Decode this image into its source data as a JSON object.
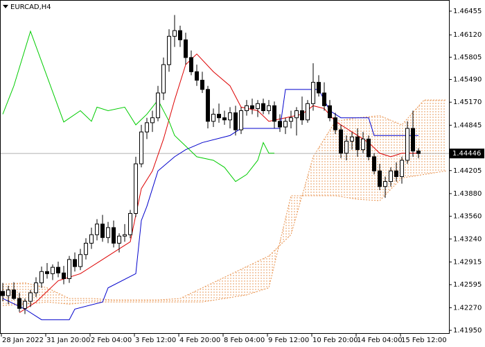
{
  "chart_data": {
    "type": "candlestick",
    "title": "EURCAD,H4",
    "categories": [
      "28 Jan 2022",
      null,
      null,
      null,
      null,
      null,
      null,
      null,
      "31 Jan 20:00",
      null,
      null,
      null,
      null,
      null,
      null,
      null,
      "2 Feb 04:00",
      null,
      null,
      null,
      null,
      null,
      null,
      null,
      "3 Feb 12:00",
      null,
      null,
      null,
      null,
      null,
      null,
      null,
      "4 Feb 20:00",
      null,
      null,
      null,
      null,
      null,
      null,
      null,
      "8 Feb 04:00",
      null,
      null,
      null,
      null,
      null,
      null,
      null,
      "9 Feb 12:00",
      null,
      null,
      null,
      null,
      null,
      null,
      null,
      "10 Feb 20:00",
      null,
      null,
      null,
      null,
      null,
      null,
      null,
      "14 Feb 04:00",
      null,
      null,
      null,
      null,
      null,
      null,
      null,
      "15 Feb 12:00",
      null,
      null,
      null
    ],
    "open": [
      1.425,
      1.4244,
      1.4252,
      1.424,
      1.4226,
      1.4236,
      1.4248,
      1.4262,
      1.4278,
      1.4275,
      1.4284,
      1.4276,
      1.4268,
      1.4295,
      1.4285,
      1.4302,
      1.4318,
      1.433,
      1.4345,
      1.4326,
      1.434,
      1.4318,
      1.4328,
      1.433,
      1.436,
      1.443,
      1.4475,
      1.4488,
      1.4495,
      1.453,
      1.457,
      1.461,
      1.4618,
      1.4605,
      1.458,
      1.456,
      1.4548,
      1.4535,
      1.449,
      1.45,
      1.4495,
      1.4492,
      1.4502,
      1.4478,
      1.4505,
      1.4512,
      1.4508,
      1.4515,
      1.4505,
      1.4512,
      1.449,
      1.4482,
      1.449,
      1.4495,
      1.4505,
      1.4492,
      1.4515,
      1.4545,
      1.453,
      1.4512,
      1.4495,
      1.4478,
      1.4445,
      1.4462,
      1.4468,
      1.445,
      1.4465,
      1.444,
      1.442,
      1.4398,
      1.4405,
      1.442,
      1.4412,
      1.4435,
      1.448,
      1.4448
    ],
    "high": [
      1.4262,
      1.4258,
      1.4263,
      1.4248,
      1.424,
      1.4252,
      1.427,
      1.4285,
      1.429,
      1.4288,
      1.4292,
      1.4286,
      1.43,
      1.4305,
      1.431,
      1.4325,
      1.434,
      1.4352,
      1.4358,
      1.4348,
      1.435,
      1.4332,
      1.4345,
      1.4365,
      1.444,
      1.4485,
      1.4495,
      1.4505,
      1.454,
      1.458,
      1.462,
      1.464,
      1.4625,
      1.4615,
      1.459,
      1.457,
      1.456,
      1.454,
      1.4508,
      1.4515,
      1.4505,
      1.451,
      1.4512,
      1.451,
      1.452,
      1.4522,
      1.452,
      1.4522,
      1.452,
      1.4518,
      1.45,
      1.4495,
      1.4505,
      1.451,
      1.4525,
      1.452,
      1.4572,
      1.4555,
      1.4545,
      1.452,
      1.4502,
      1.4485,
      1.447,
      1.4475,
      1.448,
      1.4475,
      1.447,
      1.4445,
      1.443,
      1.4412,
      1.4425,
      1.4432,
      1.444,
      1.449,
      1.4505,
      1.4452
    ],
    "low": [
      1.4236,
      1.4232,
      1.4238,
      1.4221,
      1.4218,
      1.4228,
      1.4242,
      1.4255,
      1.4268,
      1.4266,
      1.427,
      1.426,
      1.4262,
      1.4278,
      1.428,
      1.4295,
      1.431,
      1.4322,
      1.432,
      1.4318,
      1.4312,
      1.4305,
      1.432,
      1.4325,
      1.4355,
      1.4425,
      1.4465,
      1.4475,
      1.449,
      1.452,
      1.456,
      1.4595,
      1.4595,
      1.457,
      1.4555,
      1.454,
      1.453,
      1.448,
      1.4482,
      1.4488,
      1.4485,
      1.448,
      1.447,
      1.4472,
      1.4498,
      1.45,
      1.4496,
      1.45,
      1.45,
      1.448,
      1.4475,
      1.4472,
      1.448,
      1.447,
      1.4485,
      1.4488,
      1.4505,
      1.4525,
      1.4505,
      1.449,
      1.4472,
      1.4438,
      1.4435,
      1.445,
      1.444,
      1.4445,
      1.4435,
      1.4415,
      1.4393,
      1.4382,
      1.4398,
      1.4405,
      1.4402,
      1.443,
      1.444,
      1.4438
    ],
    "close": [
      1.4244,
      1.4252,
      1.424,
      1.4226,
      1.4236,
      1.4248,
      1.4262,
      1.4278,
      1.4275,
      1.4284,
      1.4276,
      1.4268,
      1.4295,
      1.4285,
      1.4302,
      1.4318,
      1.433,
      1.4345,
      1.4326,
      1.434,
      1.4318,
      1.4328,
      1.433,
      1.436,
      1.443,
      1.4475,
      1.4488,
      1.4495,
      1.453,
      1.457,
      1.461,
      1.4618,
      1.4605,
      1.458,
      1.456,
      1.4548,
      1.4535,
      1.449,
      1.45,
      1.4495,
      1.4492,
      1.4502,
      1.4478,
      1.4505,
      1.4512,
      1.4508,
      1.4515,
      1.4505,
      1.4512,
      1.449,
      1.4482,
      1.449,
      1.4495,
      1.4505,
      1.4492,
      1.4515,
      1.4545,
      1.453,
      1.4512,
      1.4495,
      1.4478,
      1.4445,
      1.4462,
      1.4468,
      1.445,
      1.4465,
      1.444,
      1.442,
      1.4398,
      1.4405,
      1.442,
      1.4412,
      1.4435,
      1.448,
      1.4448,
      1.44446
    ],
    "lines": [
      {
        "color": "#dd0000",
        "x": [
          3,
          6,
          10,
          14,
          18,
          21,
          23,
          25,
          27,
          29,
          31,
          33,
          35,
          38,
          41,
          43,
          46,
          48,
          51,
          54,
          56,
          58,
          60,
          62,
          64,
          66,
          68,
          70,
          72,
          74,
          75
        ],
        "values": [
          1.422,
          1.4235,
          1.4265,
          1.4275,
          1.4295,
          1.431,
          1.432,
          1.4395,
          1.442,
          1.4465,
          1.452,
          1.457,
          1.4585,
          1.456,
          1.454,
          1.451,
          1.4505,
          1.449,
          1.4495,
          1.45,
          1.4512,
          1.4508,
          1.449,
          1.448,
          1.447,
          1.446,
          1.4445,
          1.444,
          1.4445,
          1.4445,
          1.4445
        ]
      },
      {
        "color": "#0000cc",
        "x": [
          0,
          4,
          7,
          12,
          13,
          18,
          19,
          24,
          25,
          26,
          28,
          31,
          33,
          36,
          41,
          43,
          50,
          51,
          57,
          59,
          61,
          66,
          67,
          74,
          75
        ],
        "values": [
          1.424,
          1.4225,
          1.421,
          1.421,
          1.4225,
          1.4235,
          1.4255,
          1.4275,
          1.435,
          1.437,
          1.442,
          1.444,
          1.445,
          1.446,
          1.447,
          1.448,
          1.448,
          1.4535,
          1.4535,
          1.4505,
          1.4495,
          1.4495,
          1.447,
          1.447,
          1.447
        ]
      },
      {
        "color": "#00cc00",
        "x": [
          0,
          2,
          5,
          8,
          11,
          14,
          16,
          17,
          19,
          22,
          24,
          26,
          28,
          30,
          31,
          33,
          35,
          38,
          40,
          42,
          44,
          46,
          47,
          48,
          49
        ],
        "values": [
          1.45,
          1.454,
          1.4617,
          1.4553,
          1.4489,
          1.4505,
          1.449,
          1.451,
          1.4505,
          1.451,
          1.4485,
          1.45,
          1.452,
          1.449,
          1.447,
          1.4455,
          1.444,
          1.4435,
          1.4425,
          1.4405,
          1.4415,
          1.4435,
          1.446,
          1.4445,
          1.4445
        ]
      }
    ],
    "cloud": {
      "color": "#e8904a",
      "x": [
        0,
        4,
        8,
        12,
        16,
        20,
        24,
        28,
        32,
        36,
        40,
        44,
        48,
        52,
        56,
        60,
        64,
        68,
        72,
        76,
        80
      ],
      "span_a": [
        1.426,
        1.4262,
        1.4255,
        1.424,
        1.424,
        1.4238,
        1.4238,
        1.4238,
        1.424,
        1.4255,
        1.427,
        1.4285,
        1.43,
        1.433,
        1.444,
        1.449,
        1.4495,
        1.4498,
        1.4485,
        1.452,
        1.452
      ],
      "span_b": [
        1.423,
        1.4232,
        1.4235,
        1.4232,
        1.4235,
        1.4235,
        1.4235,
        1.4235,
        1.4235,
        1.4235,
        1.424,
        1.4245,
        1.4255,
        1.4385,
        1.4385,
        1.4385,
        1.438,
        1.4378,
        1.441,
        1.4415,
        1.442
      ]
    },
    "current_price": 1.44446,
    "ylim": [
      1.41911,
      1.46612
    ],
    "yticks": [
      1.46455,
      {
        "value": 1.4612,
        "label": "1.46120"
      },
      1.45805,
      {
        "value": 1.4549,
        "label": "1.45490"
      },
      {
        "value": 1.4517,
        "label": "1.45170"
      },
      1.44845,
      1.44205,
      {
        "value": 1.4388,
        "label": "1.43880"
      },
      {
        "value": 1.4356,
        "label": "1.43560"
      },
      {
        "value": 1.4324,
        "label": "1.43240"
      },
      1.42915,
      1.42595,
      {
        "value": 1.4227,
        "label": "1.42270"
      },
      {
        "value": 1.4195,
        "label": "1.41950"
      }
    ]
  }
}
